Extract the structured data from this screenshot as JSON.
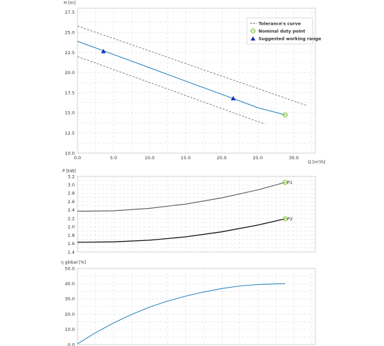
{
  "chart_data": [
    {
      "type": "line",
      "ylabel": "H [m]",
      "xlabel": "Q [m³/h]",
      "xlim": [
        0,
        33
      ],
      "ylim": [
        10,
        28
      ],
      "xticks": [
        "0.0",
        "5.0",
        "10.0",
        "15.0",
        "20.0",
        "25.0",
        "30.0"
      ],
      "xtick_values": [
        0,
        5,
        10,
        15,
        20,
        25,
        30
      ],
      "yticks": [
        "10.0",
        "12.5",
        "15.0",
        "17.5",
        "20.0",
        "22.5",
        "25.0",
        "27.5"
      ],
      "ytick_values": [
        10,
        12.5,
        15,
        17.5,
        20,
        22.5,
        25,
        27.5
      ],
      "grid": true,
      "legend_position": "top-right",
      "legend": {
        "tolerance": "Tolerance's curve",
        "duty": "Nominal duty point",
        "range": "Suggested working range"
      },
      "series": [
        {
          "role": "upper",
          "style": "dashed",
          "color": "#666666",
          "x": [
            0,
            31.8
          ],
          "y": [
            25.8,
            15.9
          ]
        },
        {
          "role": "lower",
          "style": "dashed",
          "color": "#666666",
          "x": [
            0,
            26
          ],
          "y": [
            22.0,
            13.6
          ]
        },
        {
          "role": "main",
          "style": "solid",
          "color": "#2e86c1",
          "x": [
            0,
            5,
            10,
            15,
            20,
            25,
            28.8
          ],
          "y": [
            23.9,
            22.25,
            20.6,
            18.95,
            17.3,
            15.65,
            14.75
          ]
        }
      ],
      "markers": [
        {
          "type": "working-range",
          "color": "#1c2bb8",
          "x": 3.6,
          "y": 22.65
        },
        {
          "type": "working-range",
          "color": "#1c2bb8",
          "x": 21.6,
          "y": 16.8
        },
        {
          "type": "duty-point",
          "color": "#8cc63f",
          "x": 28.8,
          "y": 14.75
        }
      ]
    },
    {
      "type": "line",
      "ylabel": "P [kW]",
      "xlim": [
        0,
        33
      ],
      "ylim": [
        1.4,
        3.2
      ],
      "yticks": [
        "1.4",
        "1.6",
        "1.8",
        "2.0",
        "2.2",
        "2.4",
        "2.6",
        "2.8",
        "3.0",
        "3.2"
      ],
      "ytick_values": [
        1.4,
        1.6,
        1.8,
        2.0,
        2.2,
        2.4,
        2.6,
        2.8,
        3.0,
        3.2
      ],
      "grid": true,
      "series": [
        {
          "name": "P1",
          "color": "#555555",
          "x": [
            0,
            5,
            10,
            15,
            20,
            25,
            28.8
          ],
          "y": [
            2.37,
            2.38,
            2.44,
            2.54,
            2.69,
            2.88,
            3.06
          ]
        },
        {
          "name": "P2",
          "color": "#111111",
          "x": [
            0,
            5,
            10,
            15,
            20,
            25,
            28.8
          ],
          "y": [
            1.63,
            1.64,
            1.68,
            1.76,
            1.88,
            2.04,
            2.19
          ]
        }
      ],
      "markers": [
        {
          "label": "P1",
          "color": "#8cc63f",
          "x": 28.8,
          "y": 3.06
        },
        {
          "label": "P2",
          "color": "#8cc63f",
          "x": 28.8,
          "y": 2.19
        }
      ]
    },
    {
      "type": "line",
      "ylabel": "η global [%]",
      "xlim": [
        0,
        33
      ],
      "ylim": [
        0,
        50
      ],
      "yticks": [
        "0.0",
        "10.0",
        "20.0",
        "30.0",
        "40.0",
        "50.0"
      ],
      "ytick_values": [
        0,
        10,
        20,
        30,
        40,
        50
      ],
      "grid": true,
      "series": [
        {
          "color": "#2e86c1",
          "x": [
            0,
            2.5,
            5,
            7.5,
            10,
            12.5,
            15,
            17.5,
            20,
            22.5,
            25,
            27.5,
            28.8
          ],
          "y": [
            0.5,
            7.8,
            14.2,
            19.8,
            24.6,
            28.6,
            31.8,
            34.5,
            36.8,
            38.5,
            39.4,
            39.8,
            40.0
          ]
        }
      ]
    }
  ]
}
